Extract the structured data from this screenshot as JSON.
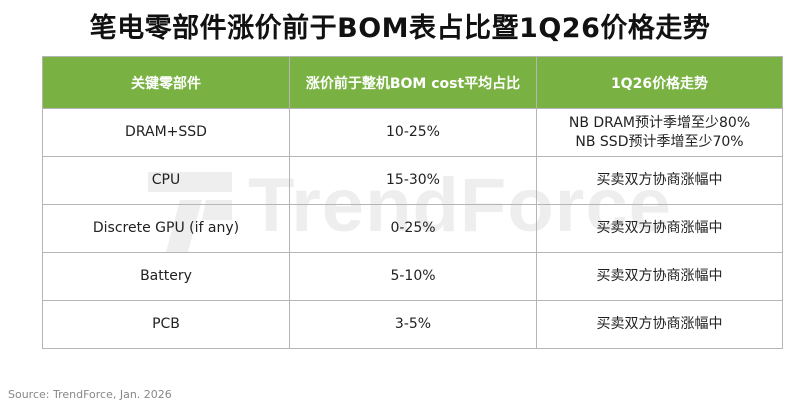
{
  "title": "笔电零部件涨价前于BOM表占比暨1Q26价格走势",
  "table": {
    "headers": [
      "关键零部件",
      "涨价前于整机BOM cost平均占比",
      "1Q26价格走势"
    ],
    "rows": [
      {
        "component": "DRAM+SSD",
        "share": "10-25%",
        "trend": [
          "NB DRAM预计季增至少80%",
          "NB SSD预计季增至少70%"
        ]
      },
      {
        "component": "CPU",
        "share": "15-30%",
        "trend": [
          "买卖双方协商涨幅中"
        ]
      },
      {
        "component": "Discrete GPU (if any)",
        "share": "0-25%",
        "trend": [
          "买卖双方协商涨幅中"
        ]
      },
      {
        "component": "Battery",
        "share": "5-10%",
        "trend": [
          "买卖双方协商涨幅中"
        ]
      },
      {
        "component": "PCB",
        "share": "3-5%",
        "trend": [
          "买卖双方协商涨幅中"
        ]
      }
    ]
  },
  "watermark": {
    "text": "TrendForce",
    "icon": "trendforce-logo-icon"
  },
  "source": "Source: TrendForce,  Jan. 2026",
  "colors": {
    "header_bg": "#79b142",
    "header_text": "#ffffff",
    "border": "#b5b5b5"
  }
}
